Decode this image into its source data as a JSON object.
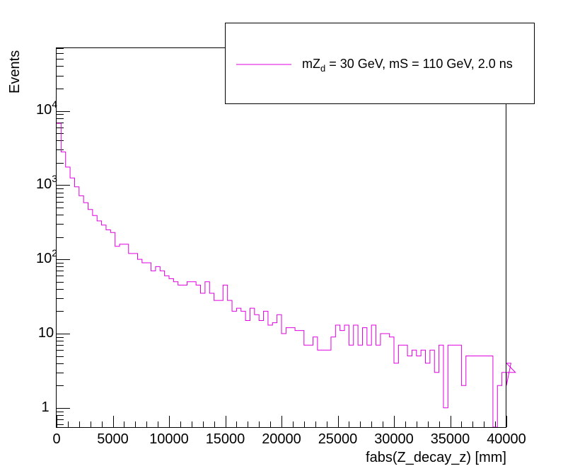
{
  "chart_data": {
    "type": "histogram",
    "xlabel": "fabs(Z_decay_z) [mm]",
    "ylabel": "Events",
    "xlim": [
      0,
      40000
    ],
    "ylim": [
      0.55,
      70000
    ],
    "yscale": "log",
    "x_ticks": [
      0,
      5000,
      10000,
      15000,
      20000,
      25000,
      30000,
      35000,
      40000
    ],
    "x_tick_labels": [
      "0",
      "5000",
      "10000",
      "15000",
      "20000",
      "25000",
      "30000",
      "35000",
      "40000"
    ],
    "y_ticks": [
      1,
      10,
      100,
      1000,
      10000
    ],
    "y_tick_labels": {
      "one": "1",
      "ten": "10",
      "hundred_base": "10",
      "hundred_exp": "2",
      "thousand_base": "10",
      "thousand_exp": "3",
      "tenthousand_base": "10",
      "tenthousand_exp": "4"
    },
    "bin_width": 400,
    "series": [
      {
        "name": "mZ_d = 30 GeV, mS = 110 GeV, 2.0 ns",
        "color": "#e000e0",
        "values": [
          6800,
          2800,
          1750,
          1250,
          950,
          720,
          580,
          470,
          390,
          330,
          290,
          250,
          230,
          150,
          160,
          160,
          120,
          120,
          100,
          90,
          90,
          70,
          80,
          70,
          60,
          55,
          50,
          45,
          45,
          50,
          50,
          45,
          35,
          50,
          35,
          28,
          28,
          45,
          28,
          20,
          22,
          20,
          15,
          22,
          18,
          15,
          20,
          13,
          14,
          18,
          10,
          12,
          12,
          11,
          11,
          7,
          7,
          9,
          6,
          6,
          6,
          9,
          13,
          11,
          13,
          7,
          13,
          7,
          12,
          7,
          13,
          7,
          10,
          10,
          9,
          4,
          7,
          7,
          5,
          6,
          5,
          6,
          4,
          6,
          3,
          7,
          1,
          7,
          7,
          7,
          2,
          5,
          5,
          5,
          5,
          5,
          5,
          0.5,
          2,
          3,
          2,
          4,
          3
        ]
      }
    ],
    "legend": {
      "position": "top-right",
      "label_prefix": "mZ",
      "label_sub": "d",
      "label_suffix": " = 30 GeV, mS = 110 GeV, 2.0 ns"
    },
    "grid": false
  }
}
